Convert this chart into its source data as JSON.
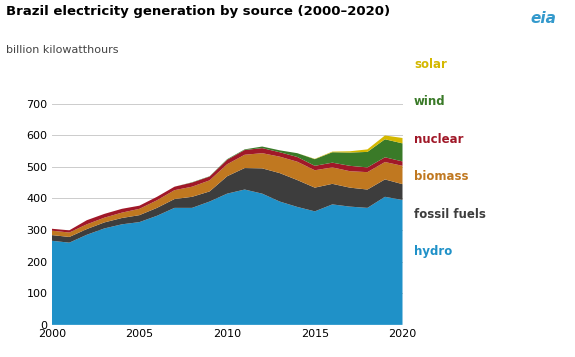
{
  "title": "Brazil electricity generation by source (2000–2020)",
  "ylabel": "billion kilowatthours",
  "years": [
    2000,
    2001,
    2002,
    2003,
    2004,
    2005,
    2006,
    2007,
    2008,
    2009,
    2010,
    2011,
    2012,
    2013,
    2014,
    2015,
    2016,
    2017,
    2018,
    2019,
    2020
  ],
  "hydro": [
    266,
    260,
    285,
    305,
    318,
    325,
    345,
    370,
    370,
    390,
    415,
    428,
    415,
    390,
    373,
    359,
    381,
    374,
    370,
    405,
    395
  ],
  "fossil_fuels": [
    18,
    18,
    18,
    19,
    20,
    22,
    25,
    28,
    35,
    32,
    55,
    68,
    80,
    90,
    85,
    75,
    65,
    60,
    58,
    55,
    50
  ],
  "biomass": [
    14,
    14,
    15,
    15,
    17,
    20,
    24,
    28,
    32,
    35,
    38,
    42,
    48,
    52,
    58,
    55,
    52,
    52,
    55,
    55,
    58
  ],
  "nuclear": [
    6,
    7,
    13,
    12,
    12,
    10,
    11,
    11,
    13,
    12,
    14,
    15,
    16,
    14,
    15,
    14,
    15,
    17,
    15,
    15,
    14
  ],
  "wind": [
    0,
    0,
    0,
    0,
    0,
    0,
    0,
    0,
    1,
    1,
    2,
    2,
    5,
    6,
    12,
    21,
    33,
    42,
    49,
    57,
    57
  ],
  "solar": [
    0,
    0,
    0,
    0,
    0,
    0,
    0,
    0,
    0,
    0,
    0,
    0,
    0,
    0,
    0,
    1,
    2,
    4,
    8,
    12,
    17
  ],
  "colors": {
    "hydro": "#1f91c8",
    "fossil_fuels": "#3d3d3d",
    "biomass": "#c07820",
    "nuclear": "#a01828",
    "wind": "#3a7a28",
    "solar": "#d4b800"
  },
  "legend_labels": [
    "solar",
    "wind",
    "nuclear",
    "biomass",
    "fossil fuels",
    "hydro"
  ],
  "legend_colors": [
    "#d4b800",
    "#3a7a28",
    "#a01828",
    "#c07820",
    "#3d3d3d",
    "#1f91c8"
  ],
  "ylim": [
    0,
    700
  ],
  "yticks": [
    0,
    100,
    200,
    300,
    400,
    500,
    600,
    700
  ],
  "bg_color": "#ffffff",
  "grid_color": "#cccccc"
}
